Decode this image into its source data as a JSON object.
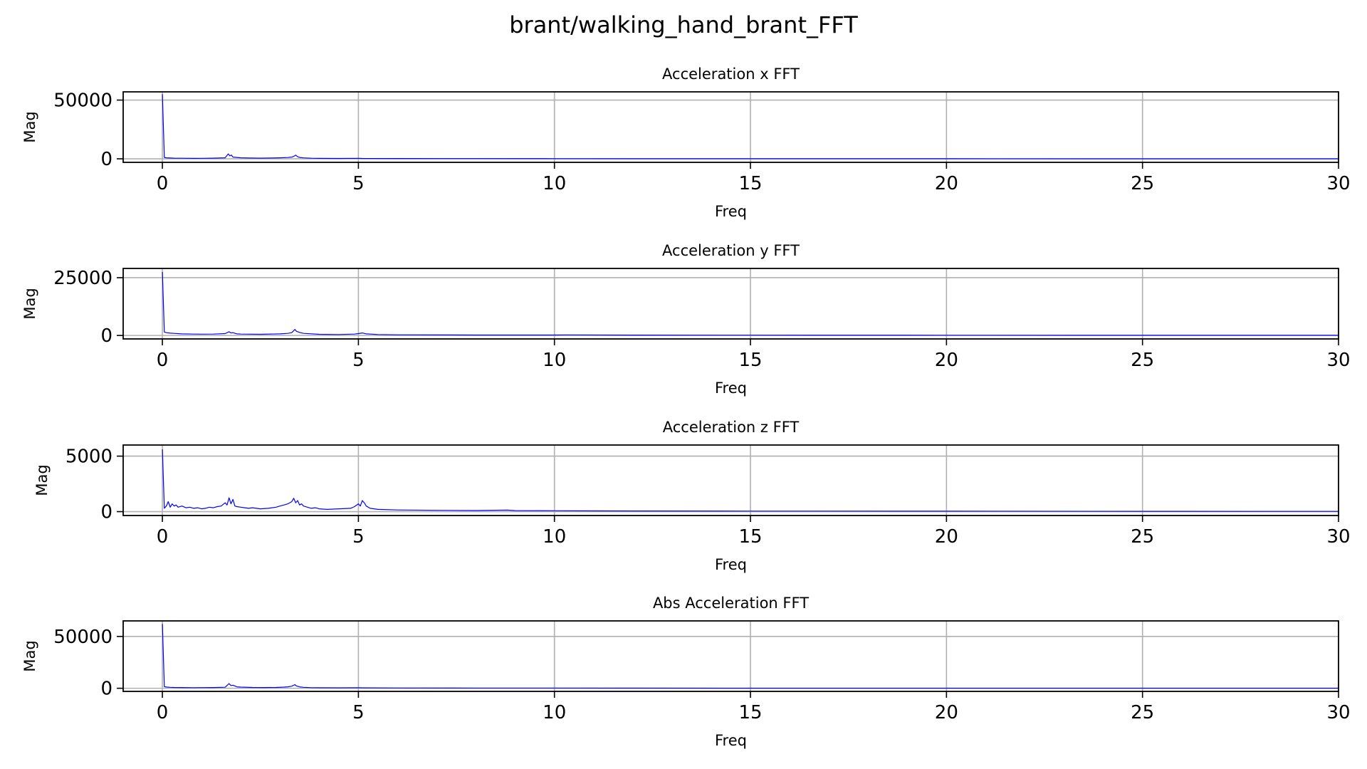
{
  "figure": {
    "suptitle": "brant/walking_hand_brant_FFT"
  },
  "chart_data": [
    {
      "type": "line",
      "title": "Acceleration x FFT",
      "xlabel": "Freq",
      "ylabel": "Mag",
      "xlim": [
        -1,
        30
      ],
      "ylim": [
        -3000,
        57000
      ],
      "xticks": [
        0,
        5,
        10,
        15,
        20,
        25,
        30
      ],
      "yticks": [
        0,
        50000
      ],
      "grid": true,
      "series_color": "#0000ff",
      "series": [
        {
          "x": [
            0,
            0.05,
            0.1,
            0.2,
            0.3,
            0.5,
            0.8,
            1.0,
            1.3,
            1.6,
            1.68,
            1.72,
            1.76,
            1.8,
            1.9,
            2.0,
            2.2,
            2.5,
            2.8,
            3.0,
            3.2,
            3.3,
            3.36,
            3.4,
            3.45,
            3.5,
            3.6,
            3.8,
            4.0,
            4.5,
            5.0,
            5.1,
            6.0,
            8.0,
            10.0,
            12.0,
            15.0,
            20.0,
            25.0,
            30.0
          ],
          "y": [
            55000,
            1200,
            900,
            700,
            600,
            500,
            400,
            450,
            600,
            900,
            4200,
            2500,
            3200,
            1500,
            1200,
            900,
            700,
            600,
            700,
            900,
            1100,
            1500,
            2200,
            3200,
            1800,
            1200,
            800,
            500,
            400,
            350,
            450,
            350,
            250,
            200,
            150,
            120,
            100,
            80,
            60,
            50
          ]
        }
      ]
    },
    {
      "type": "line",
      "title": "Acceleration y FFT",
      "xlabel": "Freq",
      "ylabel": "Mag",
      "xlim": [
        -1,
        30
      ],
      "ylim": [
        -1500,
        29000
      ],
      "xticks": [
        0,
        5,
        10,
        15,
        20,
        25,
        30
      ],
      "yticks": [
        0,
        25000
      ],
      "grid": true,
      "series_color": "#0000ff",
      "series": [
        {
          "x": [
            0,
            0.05,
            0.1,
            0.2,
            0.3,
            0.5,
            0.8,
            1.0,
            1.3,
            1.6,
            1.7,
            1.75,
            1.8,
            1.9,
            2.0,
            2.5,
            3.0,
            3.2,
            3.3,
            3.38,
            3.42,
            3.5,
            3.6,
            4.0,
            4.5,
            4.9,
            5.0,
            5.1,
            5.2,
            5.5,
            6.0,
            8.0,
            10.0,
            10.3,
            12.0,
            15.0,
            20.0,
            25.0,
            30.0
          ],
          "y": [
            27500,
            1500,
            1200,
            1000,
            900,
            700,
            600,
            550,
            600,
            800,
            1600,
            1100,
            1200,
            700,
            600,
            500,
            700,
            900,
            1200,
            2600,
            1800,
            1300,
            900,
            500,
            400,
            600,
            800,
            1100,
            700,
            400,
            300,
            200,
            180,
            250,
            150,
            120,
            100,
            80,
            60
          ]
        }
      ]
    },
    {
      "type": "line",
      "title": "Acceleration z FFT",
      "xlabel": "Freq",
      "ylabel": "Mag",
      "xlim": [
        -1,
        30
      ],
      "ylim": [
        -350,
        6000
      ],
      "xticks": [
        0,
        5,
        10,
        15,
        20,
        25,
        30
      ],
      "yticks": [
        0,
        5000
      ],
      "grid": true,
      "series_color": "#0000ff",
      "series": [
        {
          "x": [
            0,
            0.05,
            0.1,
            0.15,
            0.2,
            0.25,
            0.3,
            0.35,
            0.4,
            0.5,
            0.6,
            0.7,
            0.8,
            0.9,
            1.0,
            1.1,
            1.2,
            1.3,
            1.4,
            1.5,
            1.6,
            1.65,
            1.7,
            1.75,
            1.8,
            1.85,
            1.9,
            2.0,
            2.1,
            2.2,
            2.3,
            2.5,
            2.7,
            2.9,
            3.0,
            3.1,
            3.2,
            3.3,
            3.35,
            3.4,
            3.45,
            3.5,
            3.55,
            3.6,
            3.7,
            3.8,
            3.9,
            4.0,
            4.2,
            4.5,
            4.8,
            4.9,
            5.0,
            5.05,
            5.1,
            5.15,
            5.2,
            5.3,
            5.5,
            6.0,
            7.0,
            8.0,
            8.8,
            9.0,
            10.0,
            11.0,
            12.0,
            15.0,
            20.0,
            25.0,
            30.0
          ],
          "y": [
            5600,
            300,
            500,
            900,
            400,
            700,
            500,
            600,
            400,
            500,
            350,
            400,
            300,
            350,
            250,
            300,
            400,
            350,
            450,
            500,
            800,
            600,
            1250,
            700,
            1100,
            500,
            450,
            400,
            350,
            300,
            350,
            250,
            300,
            400,
            500,
            600,
            700,
            900,
            1200,
            800,
            1000,
            600,
            700,
            500,
            400,
            300,
            350,
            250,
            200,
            250,
            300,
            450,
            700,
            500,
            1000,
            800,
            500,
            300,
            200,
            150,
            120,
            100,
            140,
            90,
            80,
            70,
            60,
            50,
            40,
            30,
            25
          ]
        }
      ]
    },
    {
      "type": "line",
      "title": "Abs Acceleration FFT",
      "xlabel": "Freq",
      "ylabel": "Mag",
      "xlim": [
        -1,
        30
      ],
      "ylim": [
        -3000,
        65000
      ],
      "xticks": [
        0,
        5,
        10,
        15,
        20,
        25,
        30
      ],
      "yticks": [
        0,
        50000
      ],
      "grid": true,
      "series_color": "#0000ff",
      "series": [
        {
          "x": [
            0,
            0.05,
            0.1,
            0.2,
            0.3,
            0.5,
            0.8,
            1.0,
            1.3,
            1.6,
            1.7,
            1.75,
            1.8,
            1.9,
            2.0,
            2.3,
            2.6,
            2.9,
            3.1,
            3.2,
            3.3,
            3.38,
            3.42,
            3.5,
            3.6,
            3.8,
            4.0,
            4.5,
            5.0,
            5.1,
            6.0,
            8.0,
            10.0,
            12.0,
            15.0,
            20.0,
            25.0,
            30.0
          ],
          "y": [
            62000,
            1500,
            1200,
            900,
            800,
            700,
            600,
            650,
            700,
            1000,
            4500,
            2600,
            3000,
            1400,
            1100,
            800,
            700,
            800,
            1100,
            1400,
            2000,
            3500,
            2200,
            1400,
            900,
            600,
            500,
            400,
            500,
            400,
            300,
            250,
            200,
            150,
            120,
            100,
            80,
            60
          ]
        }
      ]
    }
  ]
}
